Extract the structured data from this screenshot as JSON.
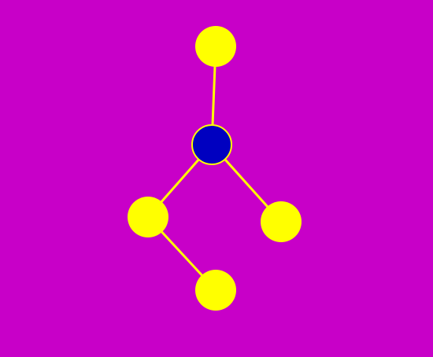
{
  "colors": {
    "background": "#C800C8",
    "edge": "#FFFF00",
    "node_default": "#FFFF00",
    "node_active": "#0000C0",
    "node_active_stroke": "#FFFF00"
  },
  "graph": {
    "nodes": [
      {
        "id": "n-top",
        "state": "default"
      },
      {
        "id": "n-center",
        "state": "active"
      },
      {
        "id": "n-left",
        "state": "default"
      },
      {
        "id": "n-right",
        "state": "default"
      },
      {
        "id": "n-bottom",
        "state": "default"
      }
    ],
    "edges": [
      {
        "from": "n-top",
        "to": "n-center"
      },
      {
        "from": "n-center",
        "to": "n-left"
      },
      {
        "from": "n-center",
        "to": "n-right"
      },
      {
        "from": "n-left",
        "to": "n-bottom"
      }
    ]
  }
}
